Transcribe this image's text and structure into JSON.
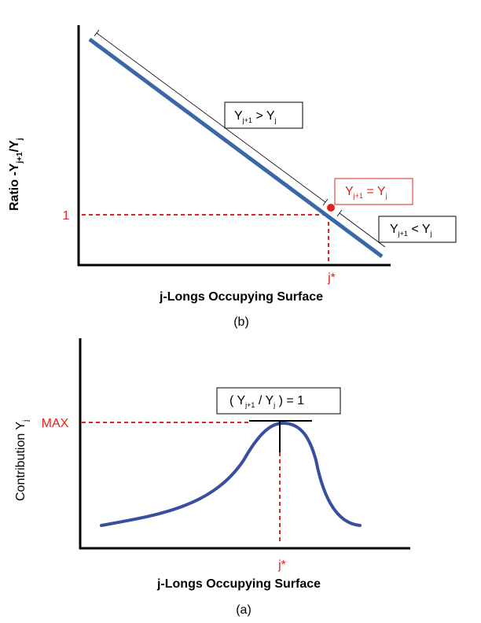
{
  "chart_data": [
    {
      "type": "line",
      "panel_label": "(b)",
      "xlabel": "j-Longs Occupying Surface",
      "ylabel": {
        "main": "Ratio -Y",
        "sub1": "j+1",
        "mid": "/Y",
        "sub2": "j"
      },
      "y_tick": "1",
      "x_marker": "j*",
      "annotations": [
        {
          "id": "gt",
          "text": [
            "Y",
            "j+1",
            " >  Y",
            "j"
          ]
        },
        {
          "id": "eq",
          "text": [
            "Y",
            "j+1",
            " =  Y",
            "j"
          ],
          "color": "#e0241b"
        },
        {
          "id": "lt",
          "text": [
            "Y",
            "j+1",
            " < Y",
            "j"
          ]
        }
      ],
      "series": [
        {
          "color": "#3a67a8",
          "trend": "decreasing linear"
        }
      ],
      "highlight_point_color": "#e0241b"
    },
    {
      "type": "line",
      "panel_label": "(a)",
      "xlabel": "j-Longs Occupying Surface",
      "ylabel": {
        "main": "Contribution Y",
        "sub": "j"
      },
      "y_tick": "MAX",
      "x_marker": "j*",
      "annotation": {
        "text": [
          "( Y",
          "j+1",
          " /  Y",
          "j",
          " ) = 1"
        ]
      },
      "series": [
        {
          "color": "#3a4ea0",
          "trend": "rises to a peak at j* then falls"
        }
      ]
    }
  ]
}
